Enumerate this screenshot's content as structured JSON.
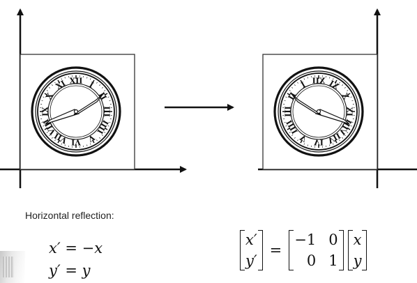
{
  "diagram": {
    "caption": "Horizontal reflection:",
    "original_numerals": [
      "XII",
      "I",
      "II",
      "III",
      "IIII",
      "V",
      "VI",
      "VII",
      "VIII",
      "IX",
      "X",
      "XI"
    ],
    "reflection_matrix": [
      [
        "−1",
        "0"
      ],
      [
        "0",
        "1"
      ]
    ],
    "input_vector": [
      "x",
      "y"
    ],
    "output_vector": [
      "x′",
      "y′"
    ],
    "equation_1": {
      "lhs": "x′",
      "op": "=",
      "rhs": "−x"
    },
    "equation_2": {
      "lhs": "y′",
      "op": "=",
      "rhs": "y"
    },
    "colors": {
      "ink": "#111111",
      "frame": "#333333"
    }
  }
}
